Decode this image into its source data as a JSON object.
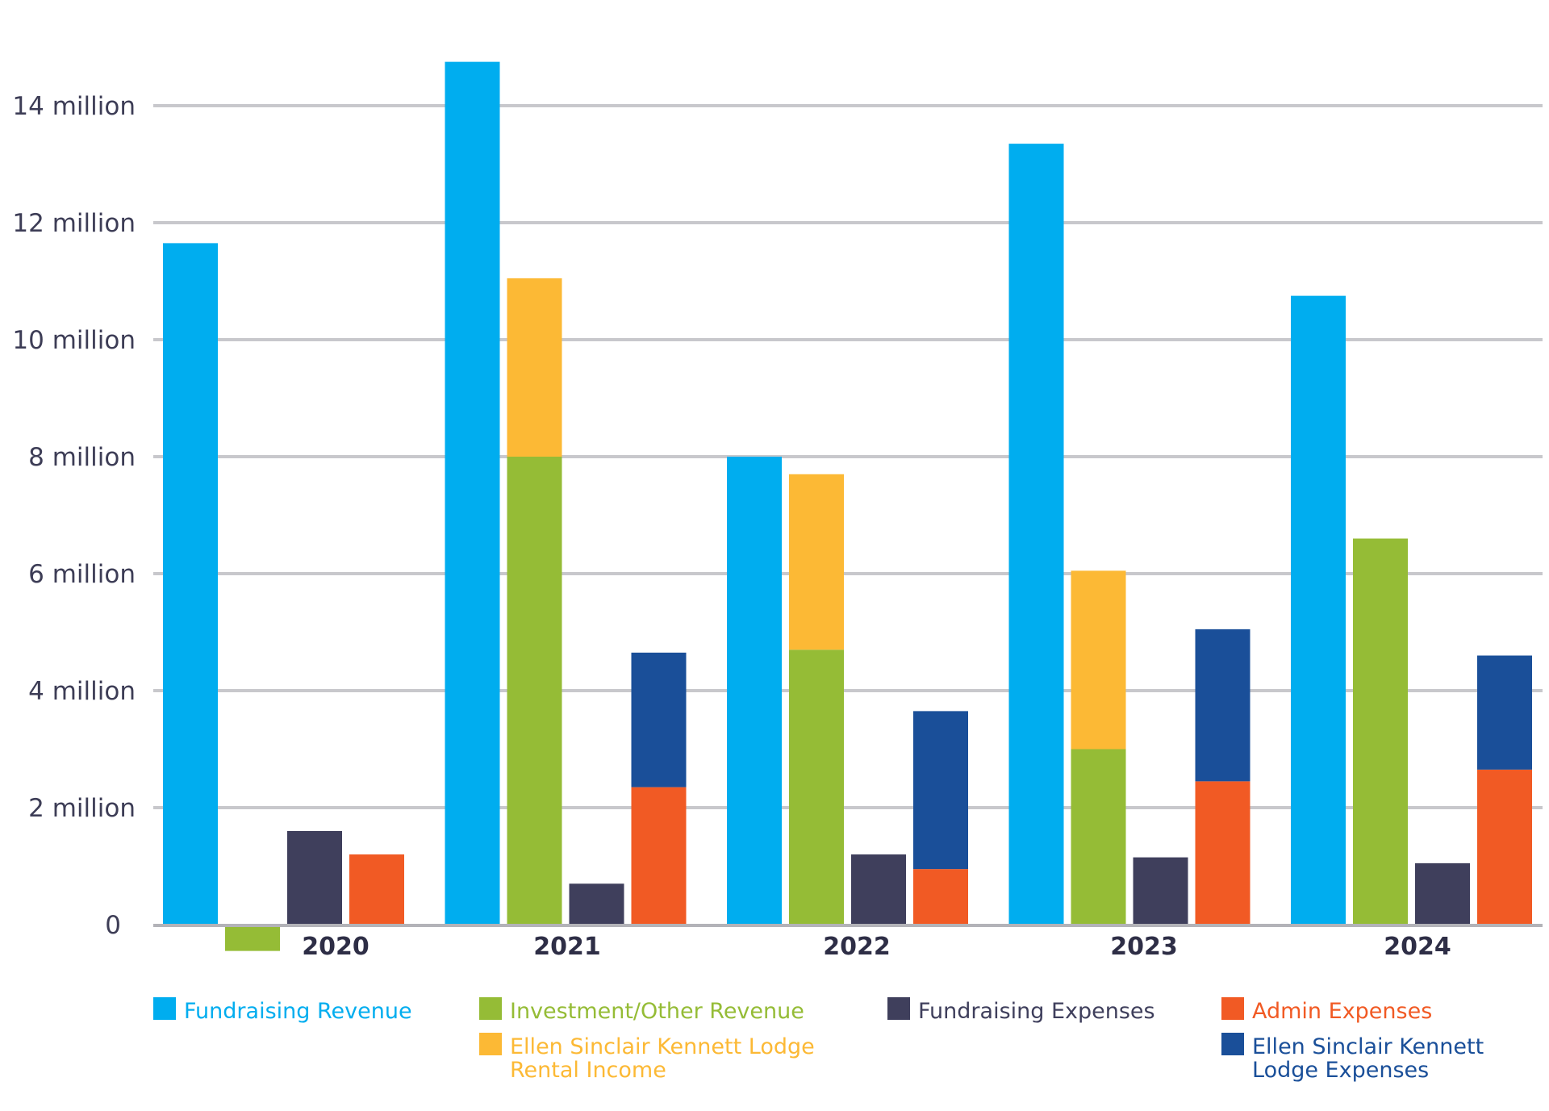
{
  "chart_data": {
    "type": "bar",
    "title": "",
    "xlabel": "",
    "ylabel": "",
    "ylim": [
      0,
      15000000
    ],
    "grid": true,
    "y_ticks": [
      {
        "value": 0,
        "label": "0"
      },
      {
        "value": 2000000,
        "label": "2 million"
      },
      {
        "value": 4000000,
        "label": "4 million"
      },
      {
        "value": 6000000,
        "label": "6 million"
      },
      {
        "value": 8000000,
        "label": "8 million"
      },
      {
        "value": 10000000,
        "label": "10 million"
      },
      {
        "value": 12000000,
        "label": "12 million"
      },
      {
        "value": 14000000,
        "label": "14 million"
      }
    ],
    "categories": [
      "2020",
      "2021",
      "2022",
      "2023",
      "2024"
    ],
    "series": [
      {
        "name": "Fundraising Revenue",
        "color": "#00adef",
        "group": "fundraising_revenue",
        "values": [
          11650000,
          14750000,
          8000000,
          13350000,
          10750000
        ]
      },
      {
        "name": "Investment/Other Revenue",
        "color": "#95bc36",
        "group": "other_revenue",
        "values": [
          -450000,
          8000000,
          4700000,
          3000000,
          6600000
        ]
      },
      {
        "name": "Ellen Sinclair Kennett Lodge Rental Income",
        "color": "#fcb935",
        "group": "other_revenue",
        "values": [
          0,
          3050000,
          3000000,
          3050000,
          0
        ]
      },
      {
        "name": "Fundraising Expenses",
        "color": "#3f3f5c",
        "group": "fundraising_expenses",
        "values": [
          1600000,
          700000,
          1200000,
          1150000,
          1050000
        ]
      },
      {
        "name": "Admin Expenses",
        "color": "#f15a24",
        "group": "admin_expenses",
        "values": [
          1200000,
          2350000,
          950000,
          2450000,
          2650000
        ]
      },
      {
        "name": "Ellen Sinclair Kennett Lodge Expenses",
        "color": "#1a4f99",
        "group": "admin_expenses",
        "values": [
          0,
          2300000,
          2700000,
          2600000,
          1950000
        ]
      }
    ],
    "legend": {
      "placement": "bottom",
      "items": [
        {
          "label": "Fundraising Revenue",
          "color": "#00adef"
        },
        {
          "label": "Investment/Other Revenue",
          "color": "#95bc36"
        },
        {
          "label": "Fundraising Expenses",
          "color": "#3f3f5c"
        },
        {
          "label": "Admin Expenses",
          "color": "#f15a24"
        },
        {
          "label": "Ellen Sinclair Kennett Lodge Rental Income",
          "color": "#fcb935"
        },
        {
          "label": "Ellen Sinclair Kennett Lodge Expenses",
          "color": "#1a4f99"
        }
      ]
    }
  }
}
